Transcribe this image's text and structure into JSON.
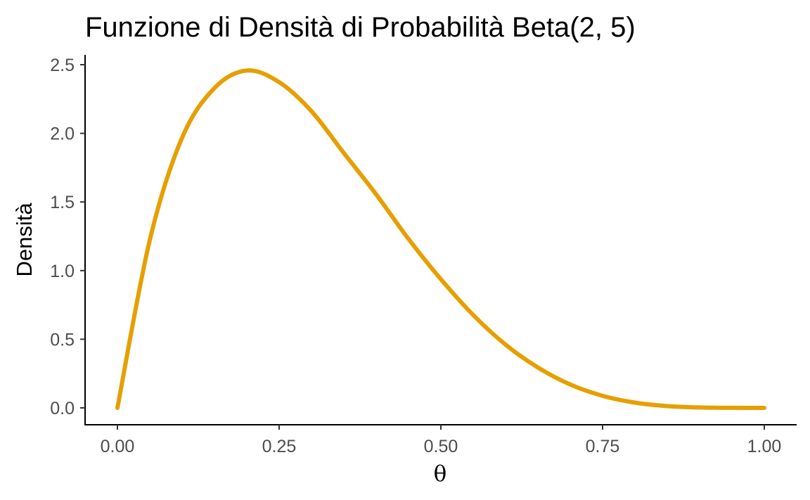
{
  "chart_data": {
    "type": "line",
    "title": "Funzione di Densità di Probabilità Beta(2, 5)",
    "xlabel": "θ",
    "ylabel": "Densità",
    "distribution": {
      "family": "Beta",
      "alpha": 2,
      "beta": 5
    },
    "xlim": [
      0,
      1
    ],
    "ylim": [
      0,
      2.4576
    ],
    "x_ticks": [
      0,
      0.25,
      0.5,
      0.75,
      1
    ],
    "x_tick_labels": [
      "0.00",
      "0.25",
      "0.50",
      "0.75",
      "1.00"
    ],
    "y_ticks": [
      0,
      0.5,
      1,
      1.5,
      2,
      2.5
    ],
    "y_tick_labels": [
      "0.0",
      "0.5",
      "1.0",
      "1.5",
      "2.0",
      "2.5"
    ],
    "grid": false,
    "legend": "none",
    "series": [
      {
        "color": "#E69F00",
        "x": [
          0,
          0.05,
          0.1,
          0.15,
          0.2,
          0.25,
          0.3,
          0.35,
          0.4,
          0.45,
          0.5,
          0.55,
          0.6,
          0.65,
          0.7,
          0.75,
          0.8,
          0.85,
          0.9,
          0.95,
          1
        ],
        "y": [
          0,
          1.2219,
          1.9683,
          2.3296,
          2.4576,
          2.373,
          2.1609,
          1.8564,
          1.5552,
          1.2302,
          0.9375,
          0.6766,
          0.4608,
          0.2941,
          0.1701,
          0.0879,
          0.0384,
          0.0129,
          0.003,
          0.0004,
          0
        ]
      }
    ]
  }
}
